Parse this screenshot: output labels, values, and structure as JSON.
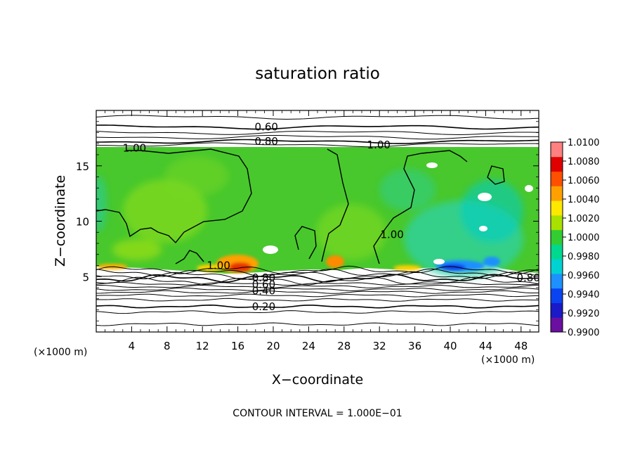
{
  "chart_data": {
    "type": "heatmap",
    "title": "saturation ratio",
    "xlabel": "X−coordinate",
    "ylabel": "Z−coordinate",
    "x_unit_left": "(×1000 m)",
    "x_unit_right": "(×1000 m)",
    "footer": "CONTOUR INTERVAL = 1.000E−01",
    "xlim": [
      0,
      50
    ],
    "ylim": [
      0,
      20
    ],
    "x_ticks": [
      4,
      8,
      12,
      16,
      20,
      24,
      28,
      32,
      36,
      40,
      44,
      48
    ],
    "y_ticks": [
      5,
      10,
      15
    ],
    "colorbar": {
      "min": 0.99,
      "max": 1.01,
      "labels": [
        "1.0100",
        "1.0080",
        "1.0060",
        "1.0040",
        "1.0020",
        "1.0000",
        "0.9980",
        "0.9960",
        "0.9940",
        "0.9920",
        "0.9900"
      ],
      "colors": [
        "#6a0fa0",
        "#1a1ac8",
        "#0a44f0",
        "#1e90ff",
        "#00d2d2",
        "#00d890",
        "#32cd32",
        "#a8e000",
        "#ffe800",
        "#ffa000",
        "#ff5000",
        "#e00000",
        "#ff8080"
      ]
    },
    "contour_labels": [
      {
        "text": "0.60",
        "x": 17.9,
        "z": 18.5
      },
      {
        "text": "0.80",
        "x": 17.9,
        "z": 17.2
      },
      {
        "text": "1.00",
        "x": 3.0,
        "z": 16.6
      },
      {
        "text": "1.00",
        "x": 30.6,
        "z": 16.9
      },
      {
        "text": "1.00",
        "x": 12.5,
        "z": 6.0
      },
      {
        "text": "1.00",
        "x": 32.1,
        "z": 8.8
      },
      {
        "text": "0.80",
        "x": 17.6,
        "z": 4.9
      },
      {
        "text": "0.60",
        "x": 17.6,
        "z": 4.3
      },
      {
        "text": "0.40",
        "x": 17.6,
        "z": 3.7
      },
      {
        "text": "0.20",
        "x": 17.6,
        "z": 2.3
      },
      {
        "text": "0.80",
        "x": 47.5,
        "z": 4.9
      }
    ],
    "contour_levels": [
      0.2,
      0.4,
      0.6,
      0.8,
      1.0
    ]
  }
}
